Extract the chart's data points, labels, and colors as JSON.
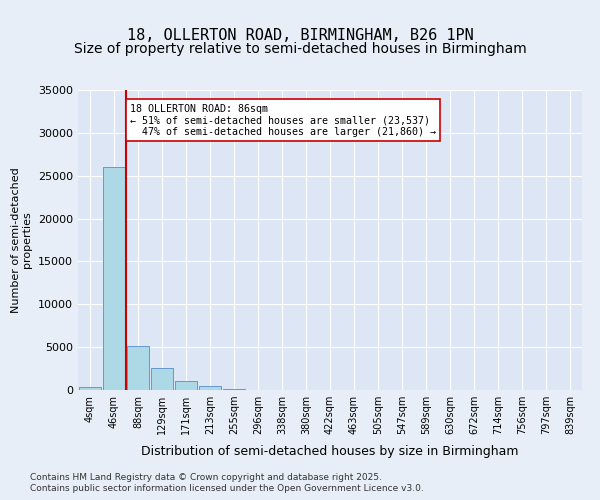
{
  "title_line1": "18, OLLERTON ROAD, BIRMINGHAM, B26 1PN",
  "title_line2": "Size of property relative to semi-detached houses in Birmingham",
  "xlabel": "Distribution of semi-detached houses by size in Birmingham",
  "ylabel": "Number of semi-detached\nproperties",
  "property_size": 86,
  "property_label": "18 OLLERTON ROAD: 86sqm",
  "pct_smaller": 51,
  "count_smaller": 23537,
  "pct_larger": 47,
  "count_larger": 21860,
  "bin_labels": [
    "4sqm",
    "46sqm",
    "88sqm",
    "129sqm",
    "171sqm",
    "213sqm",
    "255sqm",
    "296sqm",
    "338sqm",
    "380sqm",
    "422sqm",
    "463sqm",
    "505sqm",
    "547sqm",
    "589sqm",
    "630sqm",
    "672sqm",
    "714sqm",
    "756sqm",
    "797sqm",
    "839sqm"
  ],
  "bar_values": [
    400,
    26000,
    5100,
    2600,
    1000,
    500,
    100,
    50,
    20,
    5,
    2,
    1,
    0,
    0,
    0,
    0,
    0,
    0,
    0,
    0,
    0
  ],
  "bar_color": "#add8e6",
  "bar_edge_color": "#6699cc",
  "vline_color": "#cc0000",
  "vline_x_bin": 2,
  "background_color": "#e8eef8",
  "plot_bg_color": "#dce6f5",
  "ylim": [
    0,
    35000
  ],
  "yticks": [
    0,
    5000,
    10000,
    15000,
    20000,
    25000,
    30000,
    35000
  ],
  "footer_line1": "Contains HM Land Registry data © Crown copyright and database right 2025.",
  "footer_line2": "Contains public sector information licensed under the Open Government Licence v3.0.",
  "title_fontsize1": 11,
  "title_fontsize2": 10
}
